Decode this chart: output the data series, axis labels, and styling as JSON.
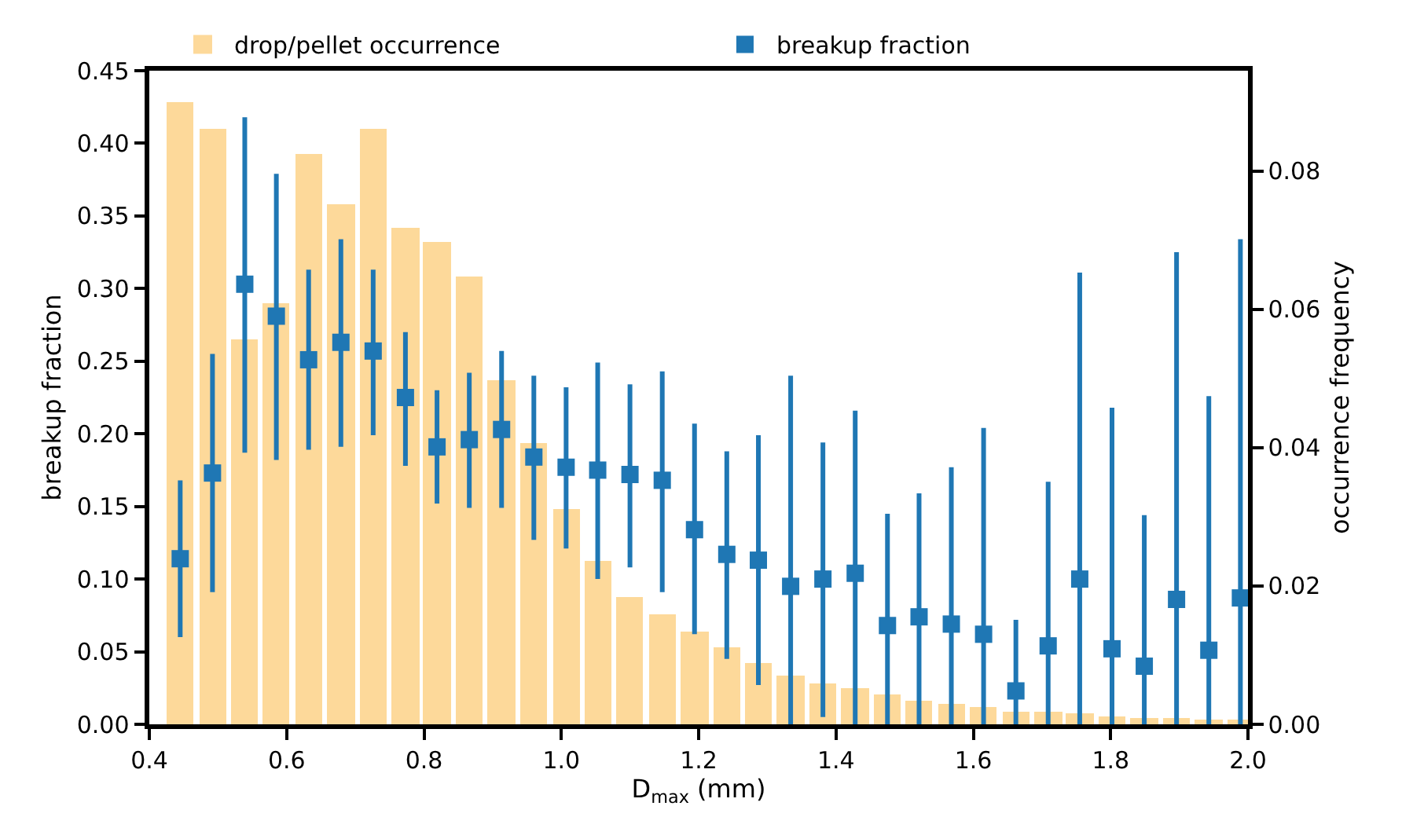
{
  "chart_data": {
    "type": "scatter",
    "xlabel": "D$_{max}$ (mm)",
    "ylabel": "breakup fraction",
    "y2label": "occurrence frequency",
    "x": [
      0.445,
      0.492,
      0.539,
      0.585,
      0.632,
      0.679,
      0.726,
      0.773,
      0.819,
      0.866,
      0.913,
      0.96,
      1.007,
      1.053,
      1.1,
      1.147,
      1.194,
      1.241,
      1.287,
      1.334,
      1.381,
      1.428,
      1.475,
      1.521,
      1.568,
      1.615,
      1.662,
      1.709,
      1.755,
      1.802,
      1.849,
      1.896,
      1.943,
      1.989
    ],
    "series": [
      {
        "name": "drop/pellet occurrence",
        "type": "bar",
        "axis": "y2",
        "color": "#fdd99a",
        "values": [
          0.09,
          0.086,
          0.0556,
          0.0608,
          0.0825,
          0.0751,
          0.0862,
          0.0718,
          0.0698,
          0.0647,
          0.0498,
          0.0407,
          0.0312,
          0.0237,
          0.0184,
          0.0158,
          0.0135,
          0.0112,
          0.0089,
          0.0071,
          0.006,
          0.0053,
          0.0044,
          0.0035,
          0.0029,
          0.0026,
          0.0019,
          0.0019,
          0.0017,
          0.0012,
          0.001,
          0.0008,
          0.0007,
          0.0006
        ]
      },
      {
        "name": "breakup fraction",
        "color": "#1f77b4",
        "marker": "square",
        "values": [
          0.114,
          0.173,
          0.303,
          0.281,
          0.251,
          0.263,
          0.257,
          0.225,
          0.191,
          0.196,
          0.203,
          0.184,
          0.177,
          0.175,
          0.172,
          0.168,
          0.134,
          0.117,
          0.113,
          0.095,
          0.1,
          0.104,
          0.068,
          0.074,
          0.069,
          0.062,
          0.023,
          0.054,
          0.1,
          0.052,
          0.04,
          0.086,
          0.051,
          0.087
        ],
        "errors": [
          [
            0.06,
            0.168
          ],
          [
            0.091,
            0.255
          ],
          [
            0.187,
            0.418
          ],
          [
            0.182,
            0.379
          ],
          [
            0.189,
            0.313
          ],
          [
            0.191,
            0.334
          ],
          [
            0.199,
            0.313
          ],
          [
            0.178,
            0.27
          ],
          [
            0.152,
            0.23
          ],
          [
            0.149,
            0.242
          ],
          [
            0.149,
            0.257
          ],
          [
            0.127,
            0.24
          ],
          [
            0.121,
            0.232
          ],
          [
            0.1,
            0.249
          ],
          [
            0.108,
            0.234
          ],
          [
            0.091,
            0.243
          ],
          [
            0.062,
            0.207
          ],
          [
            0.045,
            0.188
          ],
          [
            0.027,
            0.199
          ],
          [
            0.0,
            0.24
          ],
          [
            0.005,
            0.194
          ],
          [
            0.0,
            0.216
          ],
          [
            0.0,
            0.145
          ],
          [
            0.0,
            0.159
          ],
          [
            0.0,
            0.177
          ],
          [
            0.0,
            0.204
          ],
          [
            0.0,
            0.072
          ],
          [
            0.0,
            0.167
          ],
          [
            0.0,
            0.311
          ],
          [
            0.0,
            0.218
          ],
          [
            0.0,
            0.144
          ],
          [
            0.0,
            0.325
          ],
          [
            0.0,
            0.226
          ],
          [
            0.0,
            0.334
          ]
        ]
      }
    ],
    "xlim": [
      0.4,
      2.0
    ],
    "xticks": [
      0.4,
      0.6,
      0.8,
      {
        "value": 1.0,
        "label": "1.0"
      },
      1.2,
      1.4,
      1.6,
      1.8,
      {
        "value": 2.0,
        "label": "2.0"
      }
    ],
    "ylim": [
      0,
      0.45
    ],
    "yticks": [
      {
        "value": 0,
        "label": "0.00"
      },
      0.05,
      {
        "value": 0.1,
        "label": "0.10"
      },
      0.15,
      {
        "value": 0.2,
        "label": "0.20"
      },
      0.25,
      {
        "value": 0.3,
        "label": "0.30"
      },
      0.35,
      {
        "value": 0.4,
        "label": "0.40"
      },
      0.45
    ],
    "y2lim": [
      0,
      0.0945
    ],
    "y2ticks": [
      {
        "value": 0,
        "label": "0.00"
      },
      {
        "value": 0.02,
        "label": "0.02"
      },
      {
        "value": 0.04,
        "label": "0.04"
      },
      {
        "value": 0.06,
        "label": "0.06"
      },
      {
        "value": 0.08,
        "label": "0.08"
      }
    ],
    "legend": "top"
  }
}
